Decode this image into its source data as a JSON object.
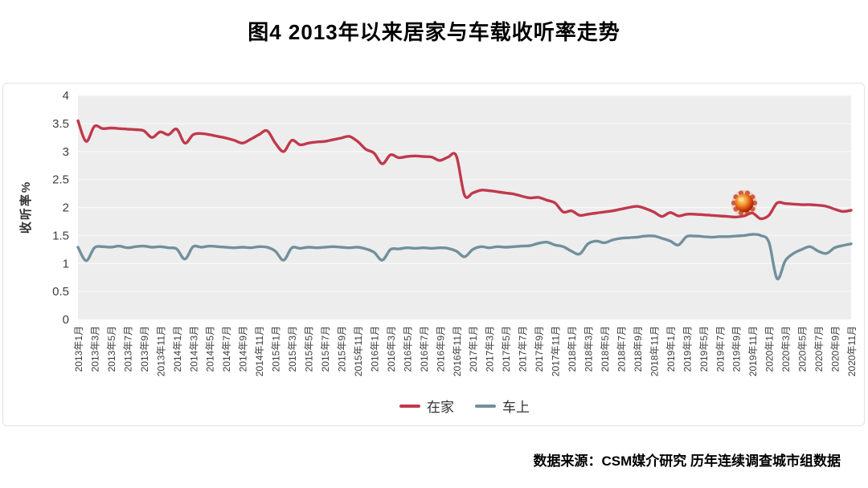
{
  "header": {
    "title": "图4 2013年以来居家与车载收听率走势"
  },
  "footer": {
    "source": "数据来源：CSM媒介研究 历年连续调查城市组数据"
  },
  "chart_data": {
    "type": "line",
    "title": "图4 2013年以来居家与车载收听率走势",
    "ylabel": "收听率%",
    "ylim": [
      0,
      4
    ],
    "y_ticks": [
      "4",
      "3.5",
      "3",
      "2.5",
      "2",
      "1.5",
      "1",
      "0.5",
      "0"
    ],
    "grid": "horizontal",
    "legend_position": "bottom",
    "x_interval": "monthly",
    "x_start": "2013年1月",
    "x_end": "2020年11月",
    "x_tick_labels": [
      "2013年1月",
      "2013年3月",
      "2013年5月",
      "2013年7月",
      "2013年9月",
      "2013年11月",
      "2014年1月",
      "2014年3月",
      "2014年5月",
      "2014年7月",
      "2014年9月",
      "2014年11月",
      "2015年1月",
      "2015年3月",
      "2015年5月",
      "2015年7月",
      "2015年9月",
      "2015年11月",
      "2016年1月",
      "2016年3月",
      "2016年5月",
      "2016年7月",
      "2016年9月",
      "2016年11月",
      "2017年1月",
      "2017年3月",
      "2017年5月",
      "2017年7月",
      "2017年9月",
      "2017年11月",
      "2018年1月",
      "2018年3月",
      "2018年5月",
      "2018年7月",
      "2018年9月",
      "2018年11月",
      "2019年1月",
      "2019年3月",
      "2019年5月",
      "2019年7月",
      "2019年9月",
      "2019年11月",
      "2020年1月",
      "2020年3月",
      "2020年5月",
      "2020年7月",
      "2020年9月",
      "2020年11月"
    ],
    "series": [
      {
        "key": "home",
        "name": "在家",
        "color": "#c0394b",
        "values": [
          3.55,
          3.18,
          3.45,
          3.41,
          3.42,
          3.41,
          3.4,
          3.39,
          3.37,
          3.25,
          3.35,
          3.3,
          3.4,
          3.15,
          3.3,
          3.32,
          3.3,
          3.27,
          3.24,
          3.2,
          3.15,
          3.22,
          3.3,
          3.37,
          3.15,
          3.0,
          3.2,
          3.12,
          3.15,
          3.17,
          3.18,
          3.21,
          3.24,
          3.27,
          3.18,
          3.04,
          2.97,
          2.78,
          2.94,
          2.89,
          2.91,
          2.92,
          2.91,
          2.9,
          2.84,
          2.9,
          2.92,
          2.22,
          2.26,
          2.31,
          2.3,
          2.28,
          2.26,
          2.24,
          2.2,
          2.17,
          2.18,
          2.13,
          2.08,
          1.92,
          1.94,
          1.86,
          1.88,
          1.9,
          1.92,
          1.94,
          1.97,
          2.0,
          2.02,
          1.98,
          1.92,
          1.84,
          1.91,
          1.85,
          1.88,
          1.88,
          1.87,
          1.86,
          1.85,
          1.84,
          1.83,
          1.85,
          1.9,
          1.8,
          1.86,
          2.08,
          2.07,
          2.06,
          2.05,
          2.05,
          2.04,
          2.02,
          1.97,
          1.93,
          1.95
        ]
      },
      {
        "key": "car",
        "name": "车上",
        "color": "#71909c",
        "values": [
          1.29,
          1.05,
          1.28,
          1.3,
          1.29,
          1.31,
          1.28,
          1.3,
          1.31,
          1.29,
          1.3,
          1.28,
          1.26,
          1.08,
          1.3,
          1.29,
          1.31,
          1.3,
          1.29,
          1.28,
          1.29,
          1.28,
          1.3,
          1.29,
          1.22,
          1.06,
          1.28,
          1.27,
          1.29,
          1.28,
          1.29,
          1.3,
          1.29,
          1.28,
          1.29,
          1.26,
          1.2,
          1.06,
          1.25,
          1.26,
          1.28,
          1.27,
          1.28,
          1.27,
          1.28,
          1.27,
          1.22,
          1.12,
          1.25,
          1.3,
          1.28,
          1.3,
          1.29,
          1.3,
          1.31,
          1.32,
          1.36,
          1.38,
          1.33,
          1.3,
          1.22,
          1.17,
          1.35,
          1.4,
          1.37,
          1.42,
          1.45,
          1.46,
          1.47,
          1.49,
          1.49,
          1.45,
          1.4,
          1.33,
          1.48,
          1.49,
          1.48,
          1.47,
          1.48,
          1.48,
          1.49,
          1.5,
          1.52,
          1.5,
          1.38,
          0.73,
          1.05,
          1.18,
          1.25,
          1.3,
          1.22,
          1.18,
          1.28,
          1.32,
          1.35
        ]
      }
    ],
    "annotation": {
      "icon": "coronavirus",
      "x_index": 81,
      "y_value": 2.08
    }
  }
}
